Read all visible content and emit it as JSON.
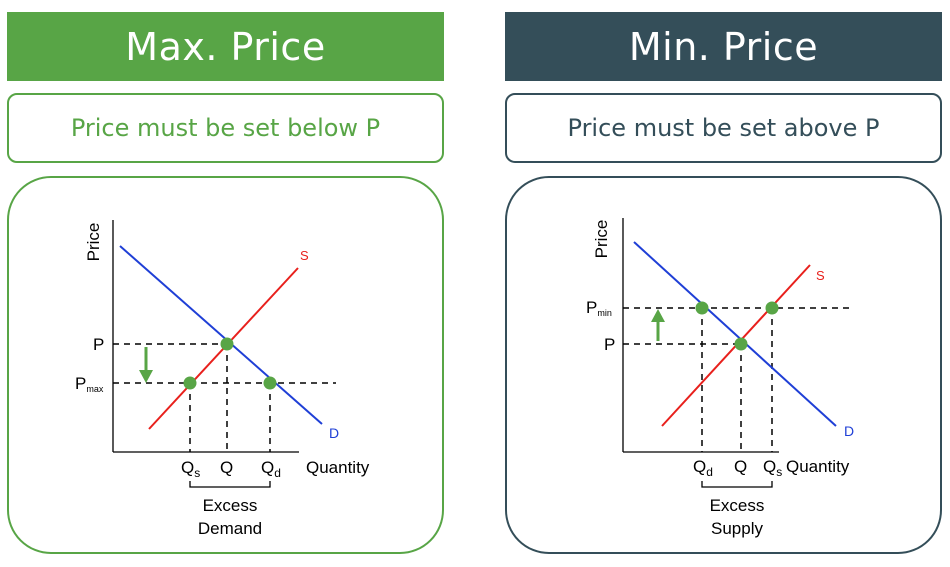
{
  "panels": [
    {
      "title": "Max. Price",
      "subtitle": "Price must be set below P",
      "accent": "#58a546",
      "chart": {
        "y_axis_label": "Price",
        "x_axis_label": "Quantity",
        "supply_label": "S",
        "demand_label": "D",
        "price_label": "P",
        "control_label": {
          "main": "P",
          "sub": "max"
        },
        "q_labels": [
          {
            "main": "Q",
            "sub": "s"
          },
          {
            "main": "Q",
            "sub": ""
          },
          {
            "main": "Q",
            "sub": "d"
          }
        ],
        "gap_label_line1": "Excess",
        "gap_label_line2": "Demand",
        "arrow_direction": "down"
      }
    },
    {
      "title": "Min. Price",
      "subtitle": "Price must be set above P",
      "accent": "#344e59",
      "chart": {
        "y_axis_label": "Price",
        "x_axis_label": "Quantity",
        "supply_label": "S",
        "demand_label": "D",
        "price_label": "P",
        "control_label": {
          "main": "P",
          "sub": "min"
        },
        "q_labels": [
          {
            "main": "Q",
            "sub": "d"
          },
          {
            "main": "Q",
            "sub": ""
          },
          {
            "main": "Q",
            "sub": "s"
          }
        ],
        "gap_label_line1": "Excess",
        "gap_label_line2": "Supply",
        "arrow_direction": "up"
      }
    }
  ],
  "colors": {
    "supply_line": "#e8201c",
    "demand_line": "#1f3fd6",
    "point_fill": "#58a546",
    "arrow": "#58a546",
    "axis": "#000000"
  }
}
